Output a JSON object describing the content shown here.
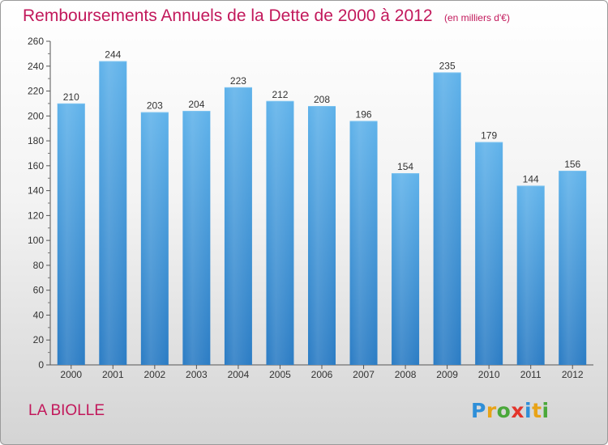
{
  "header": {
    "title": "Remboursements Annuels de la Dette de 2000 à 2012",
    "unit": "(en milliers d'€)"
  },
  "footer": {
    "place": "LA BIOLLE",
    "logo_letters": [
      "P",
      "r",
      "o",
      "x",
      "i",
      "t",
      "i"
    ]
  },
  "chart_data": {
    "type": "bar",
    "title": "Remboursements Annuels de la Dette de 2000 à 2012",
    "subtitle": "(en milliers d'€)",
    "xlabel": "",
    "ylabel": "",
    "categories": [
      "2000",
      "2001",
      "2002",
      "2003",
      "2004",
      "2005",
      "2006",
      "2007",
      "2008",
      "2009",
      "2010",
      "2011",
      "2012"
    ],
    "values": [
      210,
      244,
      203,
      204,
      223,
      212,
      208,
      196,
      154,
      235,
      179,
      144,
      156
    ],
    "ylim": [
      0,
      260
    ],
    "yticks": [
      0,
      20,
      40,
      60,
      80,
      100,
      120,
      140,
      160,
      180,
      200,
      220,
      240,
      260
    ],
    "grid": false,
    "bar_color": "#4a9fdf",
    "title_color": "#c2185b"
  }
}
